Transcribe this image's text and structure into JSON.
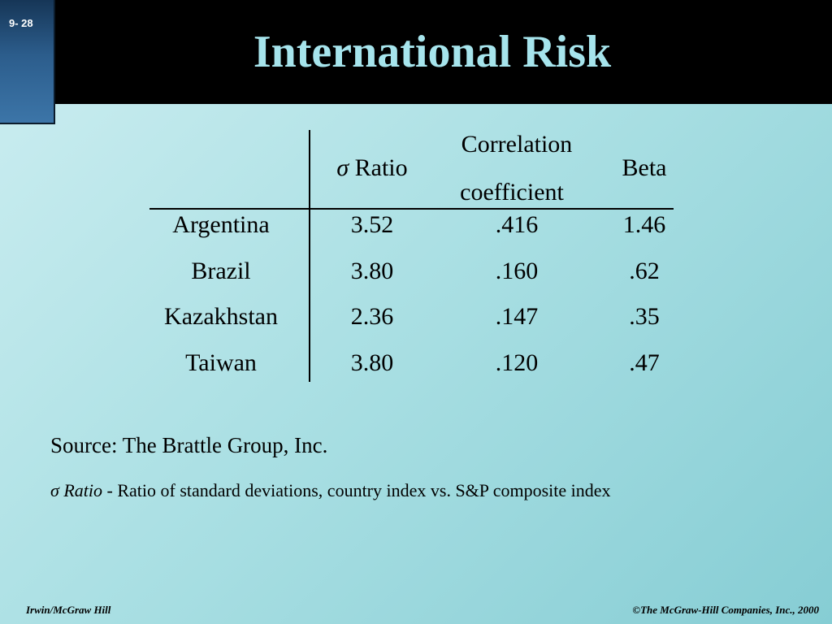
{
  "slide": {
    "number": "9- 28",
    "title": "International Risk"
  },
  "table": {
    "headers": {
      "sigma_symbol": "σ",
      "sigma_label": "Ratio",
      "correlation_line1": "Correlation",
      "correlation_line2": "coefficient",
      "beta": "Beta"
    },
    "rows": [
      {
        "country": "Argentina",
        "sigma_ratio": "3.52",
        "correlation": ".416",
        "beta": "1.46"
      },
      {
        "country": "Brazil",
        "sigma_ratio": "3.80",
        "correlation": ".160",
        "beta": ".62"
      },
      {
        "country": "Kazakhstan",
        "sigma_ratio": "2.36",
        "correlation": ".147",
        "beta": ".35"
      },
      {
        "country": "Taiwan",
        "sigma_ratio": "3.80",
        "correlation": ".120",
        "beta": ".47"
      }
    ]
  },
  "source": "Source: The Brattle Group, Inc.",
  "note": {
    "term_symbol": "σ",
    "term_label": "Ratio",
    "definition": " - Ratio of standard deviations, country index vs. S&P composite index"
  },
  "footer": {
    "left": "Irwin/McGraw Hill",
    "right": "©The McGraw-Hill Companies, Inc., 2000"
  }
}
